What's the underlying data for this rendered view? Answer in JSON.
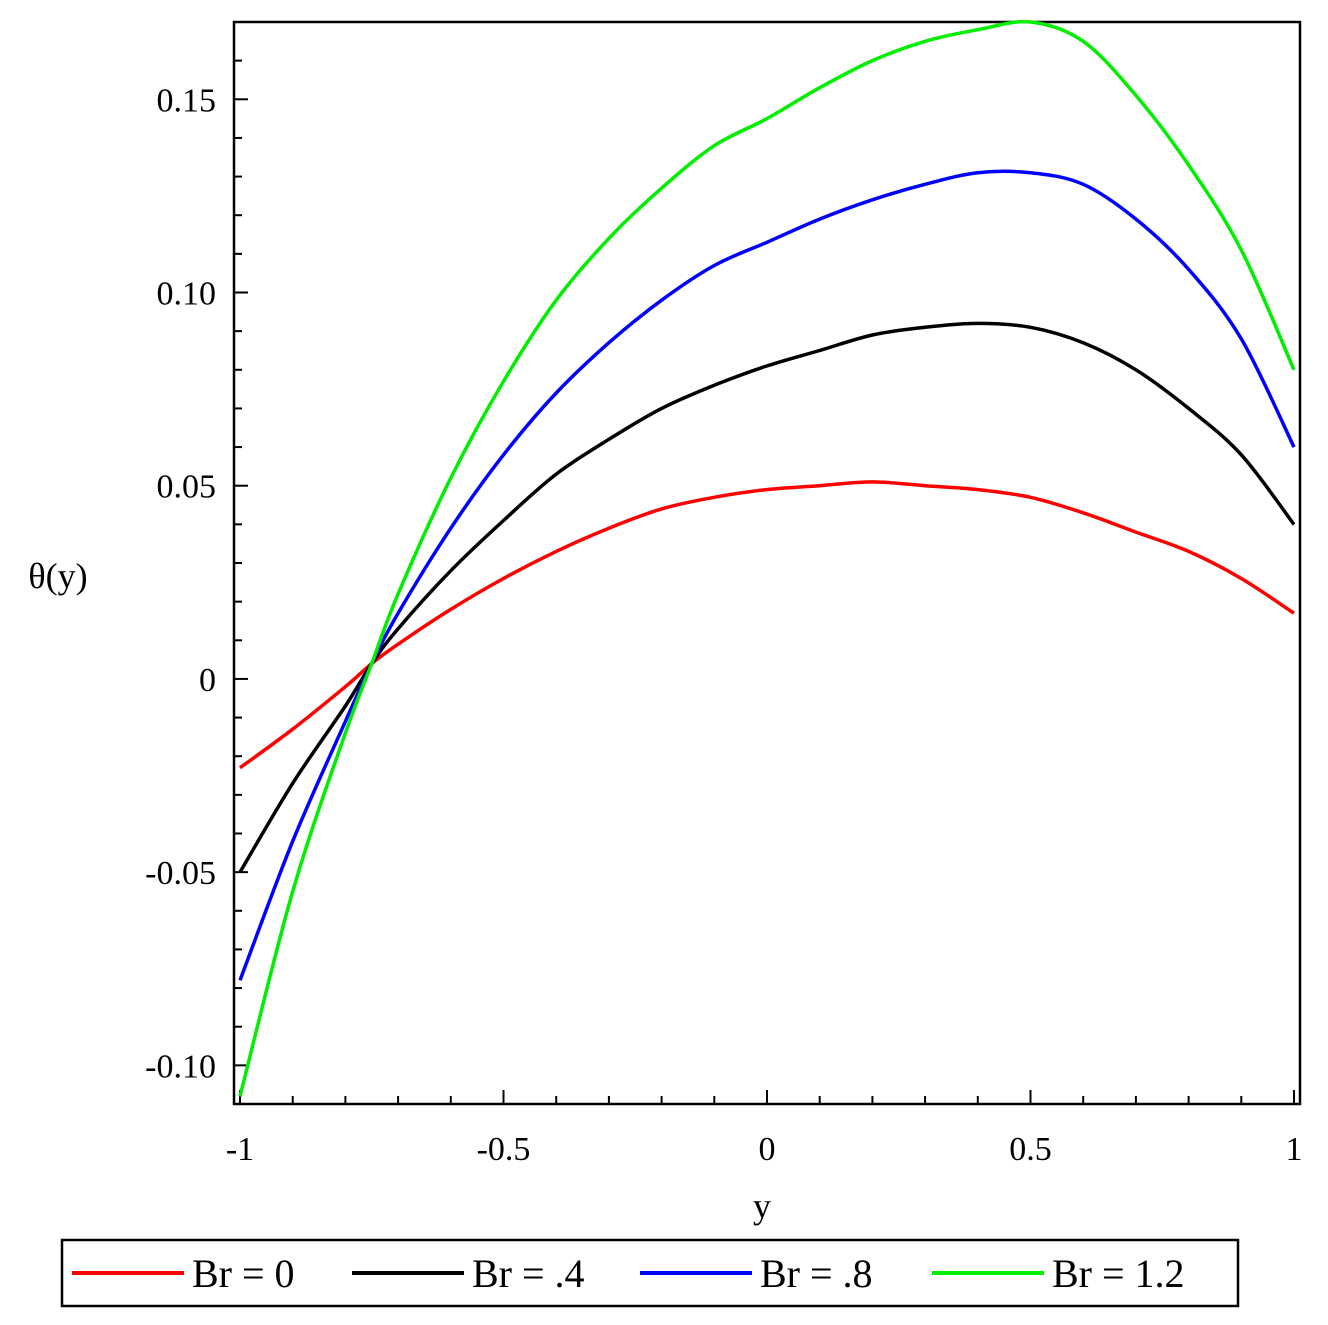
{
  "chart_data": {
    "type": "line",
    "title": "",
    "xlabel": "y",
    "ylabel": "θ(y)",
    "xlim": [
      -1,
      1
    ],
    "ylim": [
      -0.11,
      0.17
    ],
    "xticks": [
      -1,
      -0.5,
      0,
      0.5,
      1
    ],
    "xtick_labels": [
      "-1",
      "-0.5",
      "0",
      "0.5",
      "1"
    ],
    "yticks": [
      -0.1,
      -0.05,
      0,
      0.05,
      0.1,
      0.15
    ],
    "ytick_labels": [
      "-0.10",
      "-0.05",
      "0",
      "0.05",
      "0.10",
      "0.15"
    ],
    "grid": false,
    "legend_position": "bottom",
    "x": [
      -1,
      -0.9,
      -0.8,
      -0.75,
      -0.7,
      -0.6,
      -0.5,
      -0.4,
      -0.3,
      -0.2,
      -0.1,
      0,
      0.1,
      0.2,
      0.3,
      0.4,
      0.5,
      0.6,
      0.7,
      0.8,
      0.9,
      1
    ],
    "series": [
      {
        "name": "Br = 0",
        "color": "#ff0000",
        "values": [
          -0.023,
          -0.013,
          -0.002,
          0.004,
          0.009,
          0.018,
          0.026,
          0.033,
          0.039,
          0.044,
          0.047,
          0.049,
          0.05,
          0.051,
          0.05,
          0.049,
          0.047,
          0.043,
          0.038,
          0.033,
          0.026,
          0.017
        ]
      },
      {
        "name": "Br = .4",
        "color": "#000000",
        "values": [
          -0.05,
          -0.027,
          -0.007,
          0.004,
          0.013,
          0.028,
          0.041,
          0.053,
          0.062,
          0.07,
          0.076,
          0.081,
          0.085,
          0.089,
          0.091,
          0.092,
          0.091,
          0.087,
          0.08,
          0.07,
          0.058,
          0.04
        ]
      },
      {
        "name": "Br = .8",
        "color": "#0000ff",
        "values": [
          -0.078,
          -0.042,
          -0.011,
          0.004,
          0.017,
          0.039,
          0.058,
          0.074,
          0.087,
          0.098,
          0.107,
          0.113,
          0.119,
          0.124,
          0.128,
          0.131,
          0.131,
          0.128,
          0.119,
          0.106,
          0.088,
          0.06
        ]
      },
      {
        "name": "Br = 1.2",
        "color": "#00ee00",
        "values": [
          -0.108,
          -0.055,
          -0.014,
          0.004,
          0.022,
          0.052,
          0.077,
          0.098,
          0.114,
          0.127,
          0.138,
          0.145,
          0.153,
          0.16,
          0.165,
          0.168,
          0.17,
          0.165,
          0.151,
          0.133,
          0.111,
          0.08
        ]
      }
    ]
  }
}
